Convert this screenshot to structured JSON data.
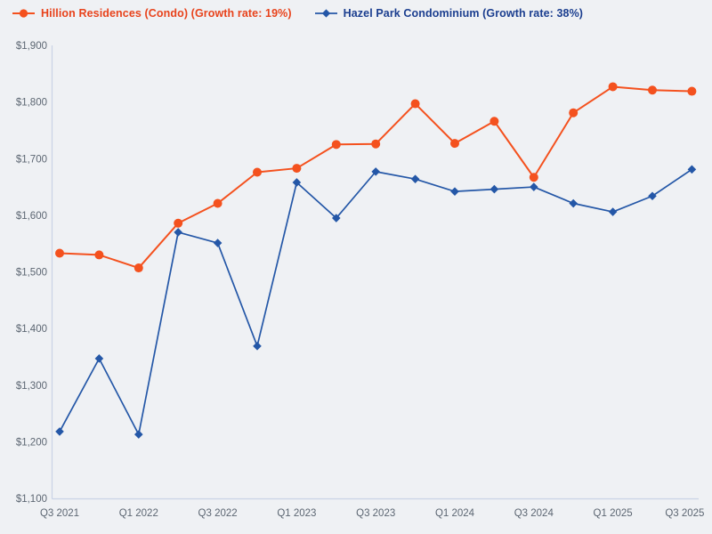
{
  "legend": {
    "items": [
      {
        "label": "Hillion Residences (Condo) (Growth rate: 19%)",
        "text_color": "#e8431c",
        "marker": "circle",
        "marker_color": "#f4511e"
      },
      {
        "label": "Hazel Park Condominium (Growth rate: 38%)",
        "text_color": "#1b3e8f",
        "marker": "diamond",
        "marker_color": "#2457a7"
      }
    ]
  },
  "chart_data": {
    "type": "line",
    "x": [
      "Q3 2021",
      "Q4 2021",
      "Q1 2022",
      "Q2 2022",
      "Q3 2022",
      "Q4 2022",
      "Q1 2023",
      "Q2 2023",
      "Q3 2023",
      "Q4 2023",
      "Q1 2024",
      "Q2 2024",
      "Q3 2024",
      "Q4 2024",
      "Q1 2025",
      "Q2 2025",
      "Q3 2025"
    ],
    "x_tick_labels": [
      "Q3 2021",
      "Q1 2022",
      "Q3 2022",
      "Q1 2023",
      "Q3 2023",
      "Q1 2024",
      "Q3 2024",
      "Q1 2025",
      "Q3 2025"
    ],
    "y_axis": {
      "min": 1100,
      "max": 1900,
      "step": 100,
      "tick_labels": [
        "$1,100",
        "$1,200",
        "$1,300",
        "$1,400",
        "$1,500",
        "$1,600",
        "$1,700",
        "$1,800",
        "$1,900"
      ]
    },
    "series": [
      {
        "name": "Hillion Residences (Condo)",
        "growth_rate": "19%",
        "color": "#f4511e",
        "marker": "circle",
        "values": [
          1533,
          1530,
          1507,
          1586,
          1621,
          1676,
          1683,
          1725,
          1726,
          1797,
          1727,
          1766,
          1667,
          1781,
          1827,
          1821,
          1819
        ]
      },
      {
        "name": "Hazel Park Condominium",
        "growth_rate": "38%",
        "color": "#2457a7",
        "marker": "diamond",
        "values": [
          1218,
          1347,
          1213,
          1570,
          1551,
          1369,
          1658,
          1595,
          1677,
          1664,
          1642,
          1646,
          1650,
          1621,
          1606,
          1634,
          1681
        ]
      }
    ],
    "legend_position": "top-left",
    "grid": false,
    "background": "#eff1f4",
    "axis_color": "#c9d3e6",
    "tick_color": "#5c6672"
  }
}
